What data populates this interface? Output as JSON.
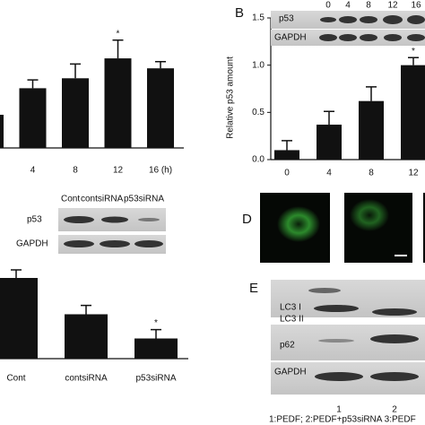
{
  "chart_data": [
    {
      "type": "bar",
      "categories": [
        null,
        "4",
        "8",
        "12",
        "16 (h)"
      ],
      "values": [
        1.0,
        1.8,
        2.1,
        2.7,
        2.4
      ],
      "errors": [
        null,
        0.25,
        0.43,
        0.55,
        0.2
      ],
      "significance": [
        null,
        null,
        null,
        "*",
        null
      ],
      "color": "#111111",
      "ylim": [
        0,
        3
      ]
    },
    {
      "type": "bar",
      "categories": [
        "0",
        "4",
        "8",
        "12"
      ],
      "values": [
        0.1,
        0.37,
        0.62,
        1.0
      ],
      "errors": [
        0.1,
        0.14,
        0.15,
        0.08
      ],
      "significance": [
        null,
        null,
        null,
        "*"
      ],
      "color": "#111111",
      "ylabel": "Relative p53 amount",
      "ylim": [
        0,
        1.5
      ],
      "yticks": [
        {
          "value": 0,
          "label": "0.0"
        },
        {
          "value": 0.5,
          "label": "0.5"
        },
        {
          "value": 1,
          "label": "1.0"
        },
        {
          "value": 1.5,
          "label": "1.5"
        }
      ]
    },
    {
      "type": "bar",
      "categories": [
        "Cont",
        "contsiRNA",
        "p53siRNA"
      ],
      "values": [
        1.0,
        0.55,
        0.25
      ],
      "errors": [
        0.1,
        0.11,
        0.11
      ],
      "significance": [
        null,
        null,
        "*"
      ],
      "color": "#111111",
      "ylim": [
        0,
        1.2
      ]
    }
  ],
  "panels": {
    "b": {
      "letter": "B",
      "lanes": [
        "0",
        "4",
        "8",
        "12",
        "16"
      ],
      "rows": [
        "p53",
        "GAPDH"
      ]
    },
    "c": {
      "lanes": [
        "Cont",
        "contsiRNA",
        "p53siRNA"
      ],
      "rows": [
        "p53",
        "GAPDH"
      ]
    },
    "d": {
      "letter": "D",
      "images": [
        "1",
        "2"
      ]
    },
    "e": {
      "letter": "E",
      "rows": [
        "LC3 I",
        "LC3 II",
        "p62",
        "GAPDH"
      ],
      "lanes": [
        "1",
        "2"
      ],
      "caption": "1:PEDF;  2:PEDF+p53siRNA  3:PEDF"
    }
  }
}
